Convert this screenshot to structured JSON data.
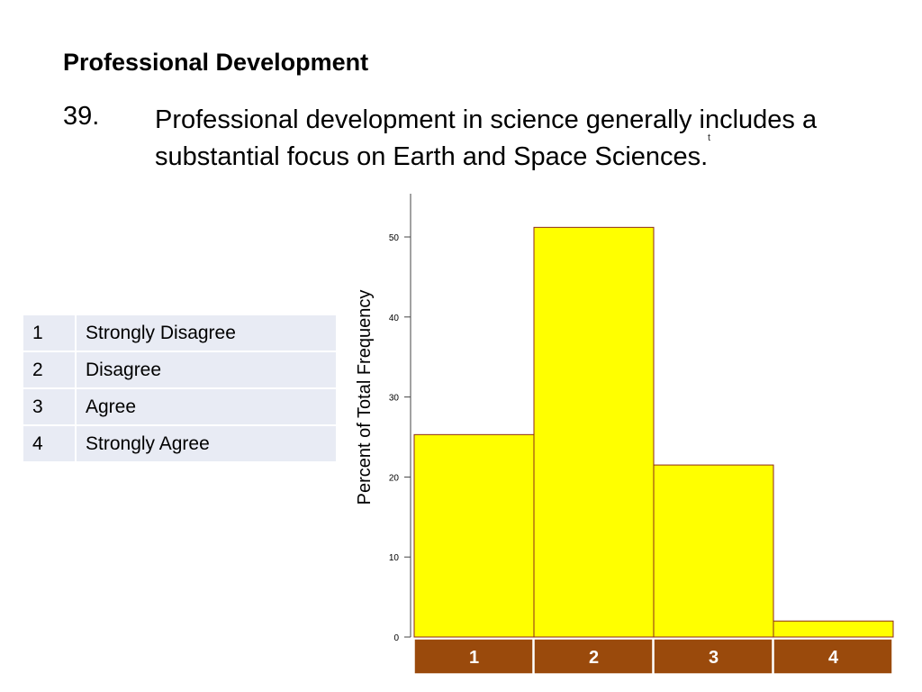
{
  "header": {
    "section_title": "Professional Development",
    "question_number": "39.",
    "question_text": "Professional development in science generally includes a substantial focus on Earth and Space Sciences.",
    "stray_mark": "t"
  },
  "legend_table": {
    "rows": [
      {
        "code": "1",
        "label": "Strongly Disagree"
      },
      {
        "code": "2",
        "label": "Disagree"
      },
      {
        "code": "3",
        "label": "Agree"
      },
      {
        "code": "4",
        "label": "Strongly Agree"
      }
    ]
  },
  "chart_data": {
    "type": "bar",
    "categories": [
      "1",
      "2",
      "3",
      "4"
    ],
    "values": [
      25.3,
      51.2,
      21.5,
      2.0
    ],
    "ylabel": "Percent of Total Frequency",
    "xlabel": "",
    "ylim": [
      0,
      55
    ],
    "yticks": [
      0,
      10,
      20,
      30,
      40,
      50
    ],
    "grid": false,
    "colors": {
      "bar_fill": "#ffff00",
      "bar_stroke": "#8b2a1a",
      "category_band": "#9a4a0c",
      "category_text": "#ffffff"
    }
  }
}
